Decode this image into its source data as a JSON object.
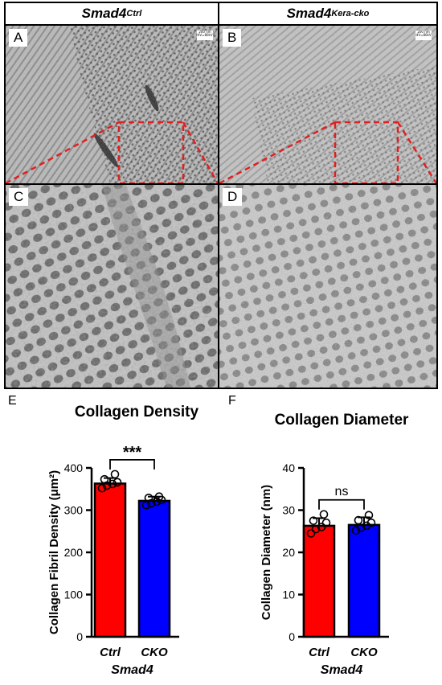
{
  "headers": {
    "left": {
      "base": "Smad4",
      "sup": "Ctrl"
    },
    "right": {
      "base": "Smad4",
      "sup": "Kera-cko"
    }
  },
  "panels": {
    "a": {
      "letter": "A",
      "scale": "200 nm HV=80kV"
    },
    "b": {
      "letter": "B",
      "scale": "200 nm HV=80kV"
    },
    "c": {
      "letter": "C"
    },
    "d": {
      "letter": "D"
    }
  },
  "colors": {
    "ctrl": "#ff0000",
    "cko": "#0000ff",
    "roi": "#e02020"
  },
  "chart_data": [
    {
      "panel": "E",
      "type": "bar",
      "title": "Collagen Density",
      "categories": [
        "Ctrl",
        "CKO"
      ],
      "group_label": "Smad4",
      "ylabel": "Collagen Fibril Density (μm²)",
      "ylim": [
        0,
        400
      ],
      "yticks": [
        0,
        100,
        200,
        300,
        400
      ],
      "values": [
        363,
        322
      ],
      "errors": [
        13,
        10
      ],
      "points": [
        [
          352,
          358,
          362,
          366,
          373,
          385
        ],
        [
          312,
          316,
          320,
          324,
          329,
          332
        ]
      ],
      "annotation": "***"
    },
    {
      "panel": "F",
      "type": "bar",
      "title": "Collagen Diameter",
      "categories": [
        "Ctrl",
        "CKO"
      ],
      "group_label": "Smad4",
      "ylabel": "Collagen Diameter (nm)",
      "ylim": [
        0,
        40
      ],
      "yticks": [
        0,
        10,
        20,
        30,
        40
      ],
      "values": [
        26.3,
        26.5
      ],
      "errors": [
        1.8,
        1.8
      ],
      "points": [
        [
          24.5,
          25.5,
          26.0,
          27.0,
          27.5,
          29.0
        ],
        [
          25.2,
          25.8,
          26.3,
          27.0,
          27.6,
          28.8
        ]
      ],
      "annotation": "ns"
    }
  ]
}
